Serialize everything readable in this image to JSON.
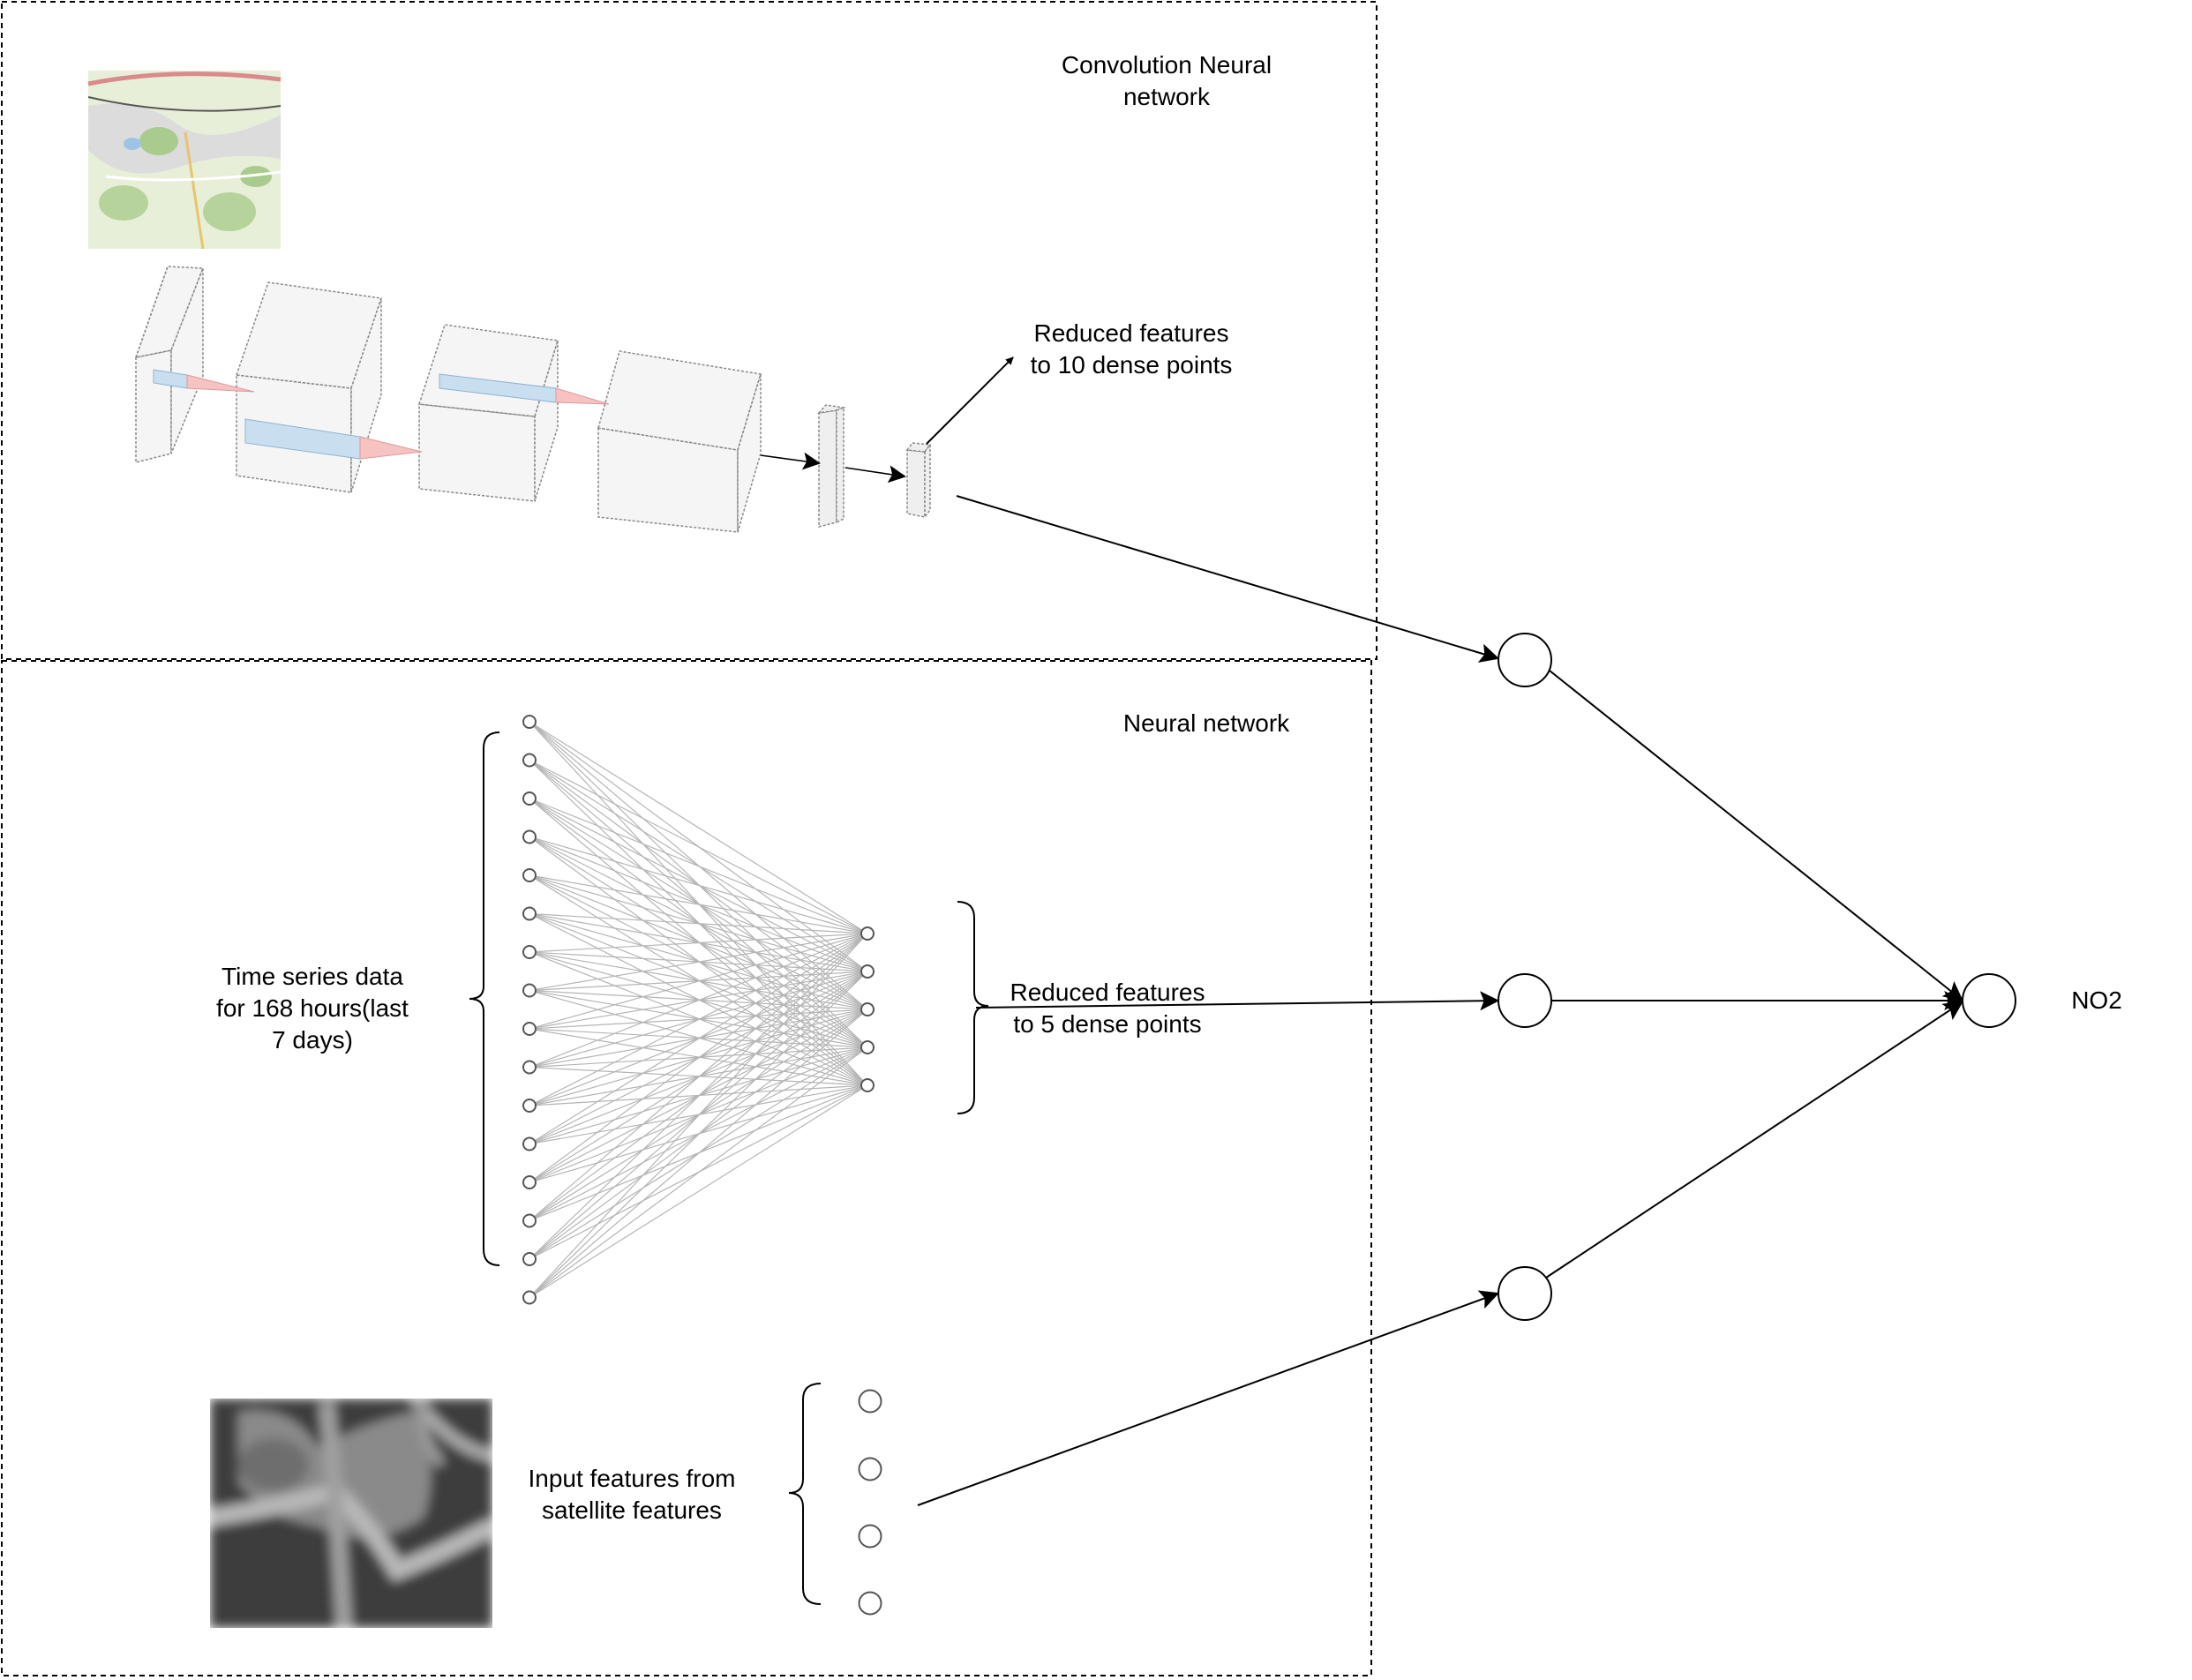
{
  "cnn_section": {
    "title_line1": "Convolution Neural",
    "title_line2": "network",
    "reduced_line1": "Reduced features",
    "reduced_line2": "to 10 dense points"
  },
  "nn_section": {
    "title": "Neural network",
    "input_line1": "Time series data",
    "input_line2": "for 168 hours(last",
    "input_line3": "7 days)",
    "reduced_line1": "Reduced features",
    "reduced_line2": "to 5 dense points"
  },
  "satellite_section": {
    "label_line1": "Input features from",
    "label_line2": "satellite features"
  },
  "output": {
    "label": "NO2"
  },
  "colors": {
    "box_fill": "#efefef",
    "box_stroke": "#888888",
    "kernel_blue": "#c9dff0",
    "kernel_red": "#f6c2c2",
    "nn_lines": "#b5b5b5"
  },
  "icons": {
    "map_thumbnail": "map-thumbnail-image",
    "satellite_thumbnail": "satellite-grayscale-image"
  }
}
